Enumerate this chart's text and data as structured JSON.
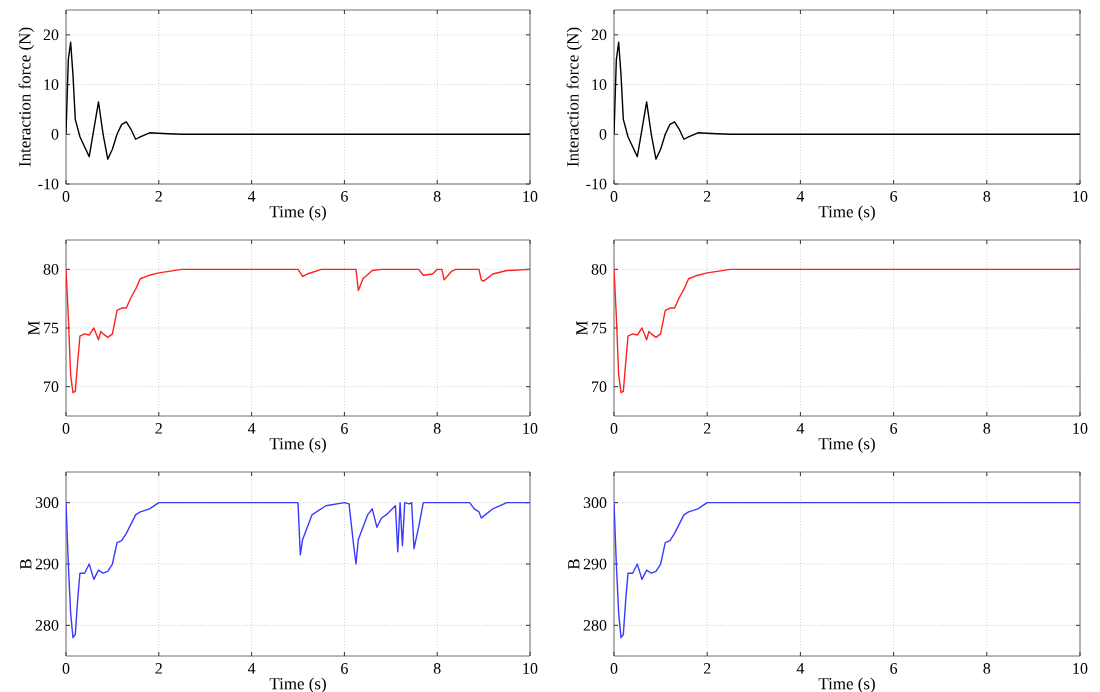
{
  "chart_data": [
    {
      "type": "line",
      "xlabel": "Time (s)",
      "ylabel": "Interaction force (N)",
      "xlim": [
        0,
        10
      ],
      "xticks": [
        0,
        2,
        4,
        6,
        8,
        10
      ],
      "ylim": [
        -10,
        25
      ],
      "yticks": [
        -10,
        0,
        10,
        20
      ],
      "grid": true,
      "line_style": "solid",
      "x": [
        0,
        0.05,
        0.1,
        0.15,
        0.2,
        0.3,
        0.4,
        0.5,
        0.6,
        0.7,
        0.8,
        0.9,
        1.0,
        1.1,
        1.2,
        1.3,
        1.4,
        1.5,
        1.6,
        1.8,
        2.0,
        2.2,
        2.5,
        3,
        10
      ],
      "series": [
        {
          "color": "#000000",
          "values": [
            0,
            15,
            18.5,
            12,
            3,
            -0.5,
            -2.5,
            -4.5,
            1,
            6.5,
            0,
            -5,
            -3,
            0,
            2,
            2.5,
            1,
            -1,
            -0.5,
            0.3,
            0.2,
            0.1,
            0,
            0,
            0
          ]
        }
      ]
    },
    {
      "type": "line",
      "xlabel": "Time (s)",
      "ylabel": "Interaction force (N)",
      "xlim": [
        0,
        10
      ],
      "xticks": [
        0,
        2,
        4,
        6,
        8,
        10
      ],
      "ylim": [
        -10,
        25
      ],
      "yticks": [
        -10,
        0,
        10,
        20
      ],
      "grid": true,
      "line_style": "solid",
      "x": [
        0,
        0.05,
        0.1,
        0.15,
        0.2,
        0.3,
        0.4,
        0.5,
        0.6,
        0.7,
        0.8,
        0.9,
        1.0,
        1.1,
        1.2,
        1.3,
        1.4,
        1.5,
        1.6,
        1.8,
        2.0,
        2.2,
        2.5,
        3,
        10
      ],
      "series": [
        {
          "color": "#000000",
          "values": [
            0,
            15,
            18.5,
            12,
            3,
            -0.5,
            -2.5,
            -4.5,
            1,
            6.5,
            0,
            -5,
            -3,
            0,
            2,
            2.5,
            1,
            -1,
            -0.5,
            0.3,
            0.2,
            0.1,
            0,
            0,
            0
          ]
        }
      ]
    },
    {
      "type": "line",
      "xlabel": "Time (s)",
      "ylabel": "M",
      "xlim": [
        0,
        10
      ],
      "xticks": [
        0,
        2,
        4,
        6,
        8,
        10
      ],
      "ylim": [
        67.5,
        82.5
      ],
      "yticks": [
        70,
        75,
        80
      ],
      "grid": true,
      "line_style": "solid",
      "x": [
        0,
        0.05,
        0.1,
        0.15,
        0.2,
        0.25,
        0.3,
        0.4,
        0.5,
        0.6,
        0.65,
        0.7,
        0.75,
        0.8,
        0.9,
        1.0,
        1.1,
        1.2,
        1.3,
        1.4,
        1.5,
        1.6,
        1.8,
        2.0,
        2.5,
        3,
        5.0,
        5.05,
        5.1,
        5.2,
        5.5,
        6.0,
        6.25,
        6.3,
        6.4,
        6.6,
        6.8,
        7.6,
        7.7,
        7.9,
        8.0,
        8.1,
        8.15,
        8.3,
        8.4,
        8.9,
        8.95,
        9.0,
        9.2,
        9.5,
        10
      ],
      "series": [
        {
          "color": "#ff2020",
          "values": [
            80,
            76,
            71,
            69.5,
            69.6,
            72,
            74.3,
            74.5,
            74.4,
            75,
            74.5,
            74,
            74.7,
            74.5,
            74.2,
            74.5,
            76.5,
            76.7,
            76.7,
            77.6,
            78.3,
            79.2,
            79.5,
            79.7,
            80,
            80,
            80,
            79.7,
            79.4,
            79.6,
            80,
            80,
            80,
            78.2,
            79.2,
            79.9,
            80,
            80,
            79.5,
            79.6,
            80,
            80,
            79.1,
            79.8,
            80,
            80,
            79.1,
            79,
            79.6,
            79.9,
            80
          ]
        }
      ]
    },
    {
      "type": "line",
      "xlabel": "Time (s)",
      "ylabel": "M",
      "xlim": [
        0,
        10
      ],
      "xticks": [
        0,
        2,
        4,
        6,
        8,
        10
      ],
      "ylim": [
        67.5,
        82.5
      ],
      "yticks": [
        70,
        75,
        80
      ],
      "grid": true,
      "line_style": "solid",
      "x": [
        0,
        0.05,
        0.1,
        0.15,
        0.2,
        0.25,
        0.3,
        0.4,
        0.5,
        0.6,
        0.65,
        0.7,
        0.75,
        0.8,
        0.9,
        1.0,
        1.1,
        1.2,
        1.3,
        1.4,
        1.5,
        1.6,
        1.8,
        2.0,
        2.5,
        3,
        10
      ],
      "series": [
        {
          "color": "#ff2020",
          "values": [
            80,
            76,
            71,
            69.5,
            69.6,
            72,
            74.3,
            74.5,
            74.4,
            75,
            74.5,
            74,
            74.7,
            74.5,
            74.2,
            74.5,
            76.5,
            76.7,
            76.7,
            77.6,
            78.3,
            79.2,
            79.5,
            79.7,
            80,
            80,
            80
          ]
        }
      ]
    },
    {
      "type": "line",
      "xlabel": "Time (s)",
      "ylabel": "B",
      "xlim": [
        0,
        10
      ],
      "xticks": [
        0,
        2,
        4,
        6,
        8,
        10
      ],
      "ylim": [
        275,
        305
      ],
      "yticks": [
        280,
        290,
        300
      ],
      "grid": true,
      "line_style": "solid",
      "x": [
        0,
        0.05,
        0.1,
        0.15,
        0.2,
        0.25,
        0.3,
        0.4,
        0.5,
        0.6,
        0.7,
        0.8,
        0.9,
        1.0,
        1.1,
        1.2,
        1.3,
        1.4,
        1.5,
        1.6,
        1.8,
        2.0,
        2.5,
        3,
        5.0,
        5.05,
        5.1,
        5.3,
        5.6,
        6.0,
        6.1,
        6.2,
        6.25,
        6.3,
        6.5,
        6.6,
        6.7,
        6.8,
        6.9,
        7.1,
        7.15,
        7.2,
        7.25,
        7.3,
        7.4,
        7.45,
        7.5,
        7.6,
        7.7,
        8.7,
        8.8,
        8.9,
        8.95,
        9.0,
        9.2,
        9.5,
        10
      ],
      "series": [
        {
          "color": "#3a3aff",
          "values": [
            300,
            290,
            282,
            278,
            278.5,
            284,
            288.5,
            288.5,
            290,
            287.5,
            289,
            288.5,
            288.8,
            290,
            293.5,
            293.8,
            295,
            296.5,
            298,
            298.5,
            299,
            300,
            300,
            300,
            300,
            291.5,
            294,
            298,
            299.5,
            300,
            299.8,
            293,
            290,
            294,
            298,
            299,
            296,
            297.5,
            298,
            299.5,
            292,
            300,
            293,
            300,
            299.8,
            300,
            292.5,
            296,
            300,
            300,
            299,
            298.5,
            297.5,
            297.8,
            299,
            300,
            300
          ]
        }
      ]
    },
    {
      "type": "line",
      "xlabel": "Time (s)",
      "ylabel": "B",
      "xlim": [
        0,
        10
      ],
      "xticks": [
        0,
        2,
        4,
        6,
        8,
        10
      ],
      "ylim": [
        275,
        305
      ],
      "yticks": [
        280,
        290,
        300
      ],
      "grid": true,
      "line_style": "solid",
      "x": [
        0,
        0.05,
        0.1,
        0.15,
        0.2,
        0.25,
        0.3,
        0.4,
        0.5,
        0.6,
        0.7,
        0.8,
        0.9,
        1.0,
        1.1,
        1.2,
        1.3,
        1.4,
        1.5,
        1.6,
        1.8,
        2.0,
        2.5,
        3,
        10
      ],
      "series": [
        {
          "color": "#3a3aff",
          "values": [
            300,
            290,
            282,
            278,
            278.5,
            284,
            288.5,
            288.5,
            290,
            287.5,
            289,
            288.5,
            288.8,
            290,
            293.5,
            293.8,
            295,
            296.5,
            298,
            298.5,
            299,
            300,
            300,
            300,
            300
          ]
        }
      ]
    }
  ]
}
